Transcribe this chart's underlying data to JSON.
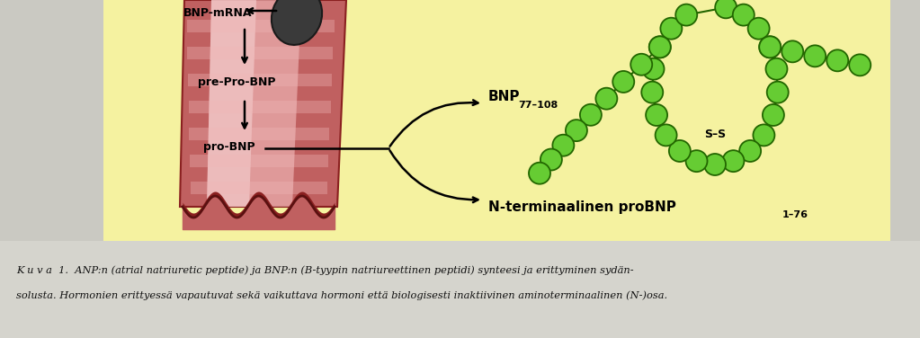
{
  "page_bg": "#cac9c2",
  "yellow_bg": "#f5f2a0",
  "tube_dark": "#c06060",
  "tube_mid": "#d88080",
  "tube_light": "#f0b8b8",
  "tube_highlight": "#f8d8d8",
  "nucleus_color": "#505050",
  "bead_fill": "#66cc33",
  "bead_edge": "#226600",
  "caption1": "K u v a  1.  ANP:n (atrial natriuretic peptide) ja BNP:n (B-tyypin natriureettinen peptidi) synteesi ja erittyminen sydän-",
  "caption2": "solusta. Hormonien erittyessä vapautuvat sekä vaikuttava hormoni että biologisesti inaktiivinen aminoterminaalinen (N-)osa.",
  "label_mrna": "BNP-mRNA",
  "label_preprobnp": "pre-Pro-BNP",
  "label_probnp": "pro-BNP",
  "label_bnp_main": "BNP",
  "label_bnp_sub": "77–108",
  "label_nterm_main": "N-terminaalinen proBNP",
  "label_nterm_sub": "1–76",
  "label_ss": "S–S"
}
